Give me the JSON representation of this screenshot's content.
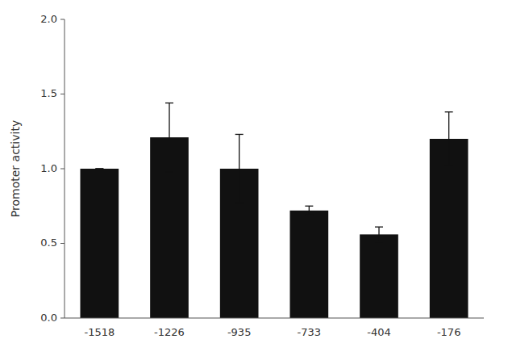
{
  "chart_data": {
    "type": "bar",
    "categories": [
      "-1518",
      "-1226",
      "-935",
      "-733",
      "-404",
      "-176"
    ],
    "values": [
      1.0,
      1.21,
      1.0,
      0.72,
      0.56,
      1.2
    ],
    "errors": [
      0.0,
      0.23,
      0.23,
      0.03,
      0.05,
      0.18
    ],
    "color": "#111111",
    "ylabel": "Promoter activity",
    "ylim": [
      0.0,
      2.0
    ],
    "yticks": [
      {
        "value": 0.0,
        "label": "0.0"
      },
      0.5,
      {
        "value": 1.0,
        "label": "1.0"
      },
      1.5,
      {
        "value": 2.0,
        "label": "2.0"
      }
    ],
    "grid": false
  }
}
